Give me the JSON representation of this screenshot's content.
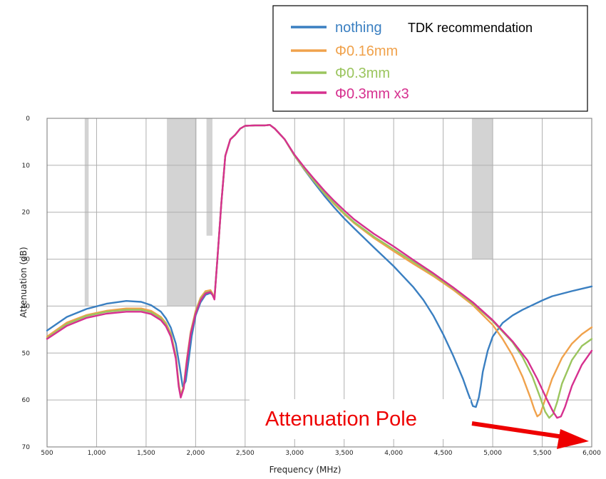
{
  "chart_data": {
    "type": "line",
    "title": "",
    "xlabel": "Frequency (MHz)",
    "ylabel": "Attenuation (dB)",
    "xlim": [
      500,
      6000
    ],
    "ylim": [
      0,
      70
    ],
    "y_inverted": true,
    "grid": true,
    "legend_position": "top-right",
    "x_ticks": [
      "500",
      "1,000",
      "1,500",
      "2,000",
      "2,500",
      "3,000",
      "3,500",
      "4,000",
      "4,500",
      "5,000",
      "5,500",
      "6,000"
    ],
    "x_tick_values": [
      500,
      1000,
      1500,
      2000,
      2500,
      3000,
      3500,
      4000,
      4500,
      5000,
      5500,
      6000
    ],
    "y_ticks": [
      "0",
      "10",
      "20",
      "30",
      "40",
      "50",
      "60",
      "70"
    ],
    "y_tick_values": [
      0,
      10,
      20,
      30,
      40,
      50,
      60,
      70
    ],
    "legend_note": "TDK recommendation",
    "annotation": "Attenuation Pole",
    "mask_regions": [
      {
        "x": [
          880,
          920
        ],
        "y": [
          0,
          40
        ]
      },
      {
        "x": [
          1710,
          2010
        ],
        "y": [
          0,
          40
        ]
      },
      {
        "x": [
          2110,
          2170
        ],
        "y": [
          0,
          25
        ]
      },
      {
        "x": [
          4790,
          5000
        ],
        "y": [
          0,
          30
        ]
      }
    ],
    "mask_color": "#d3d3d3",
    "series": [
      {
        "name": "nothing",
        "color": "#3a7fc1",
        "x": [
          500,
          700,
          900,
          1100,
          1300,
          1450,
          1550,
          1650,
          1700,
          1750,
          1800,
          1840,
          1870,
          1900,
          1930,
          1960,
          2000,
          2050,
          2100,
          2150,
          2170,
          2190,
          2220,
          2260,
          2300,
          2350,
          2400,
          2450,
          2500,
          2600,
          2700,
          2750,
          2800,
          2900,
          3000,
          3100,
          3200,
          3300,
          3400,
          3500,
          3600,
          3800,
          4000,
          4200,
          4300,
          4400,
          4500,
          4600,
          4700,
          4750,
          4800,
          4830,
          4860,
          4880,
          4900,
          4950,
          5000,
          5100,
          5200,
          5300,
          5400,
          5500,
          5600,
          5800,
          6000
        ],
        "y": [
          45.2,
          42.3,
          40.6,
          39.5,
          38.9,
          39.1,
          39.8,
          41.2,
          42.6,
          44.6,
          48.0,
          53.0,
          57.2,
          56.0,
          51.5,
          46.5,
          42.0,
          39.2,
          37.6,
          37.2,
          37.6,
          38.2,
          30,
          18,
          8,
          4.5,
          3.5,
          2.2,
          1.6,
          1.5,
          1.5,
          1.4,
          2.2,
          4.5,
          8.0,
          11.0,
          13.8,
          16.5,
          19.0,
          21.3,
          23.4,
          27.5,
          31.5,
          36.0,
          38.7,
          42.0,
          46.0,
          50.5,
          55.5,
          58.5,
          61.3,
          61.5,
          59.5,
          57.0,
          54.0,
          49.5,
          46.5,
          43.6,
          42.0,
          40.8,
          39.8,
          38.8,
          37.9,
          36.8,
          35.8
        ]
      },
      {
        "name": "Φ0.16mm",
        "color": "#f0a24c",
        "x": [
          500,
          700,
          900,
          1100,
          1300,
          1450,
          1550,
          1650,
          1700,
          1750,
          1800,
          1830,
          1850,
          1880,
          1910,
          1950,
          2000,
          2050,
          2100,
          2150,
          2170,
          2190,
          2220,
          2260,
          2300,
          2350,
          2400,
          2450,
          2500,
          2600,
          2700,
          2750,
          2800,
          2900,
          3000,
          3100,
          3200,
          3300,
          3400,
          3500,
          3600,
          3800,
          4000,
          4200,
          4400,
          4600,
          4800,
          5000,
          5100,
          5200,
          5300,
          5380,
          5420,
          5450,
          5480,
          5520,
          5600,
          5700,
          5800,
          5900,
          6000
        ],
        "y": [
          46.5,
          43.5,
          41.9,
          41.0,
          40.5,
          40.5,
          41.0,
          42.3,
          43.6,
          45.8,
          50.5,
          56.5,
          59.0,
          57.0,
          51.5,
          45.5,
          41.0,
          38.2,
          36.8,
          36.6,
          37.3,
          38.3,
          30,
          18,
          8,
          4.5,
          3.5,
          2.2,
          1.6,
          1.5,
          1.5,
          1.4,
          2.2,
          4.5,
          8.0,
          10.9,
          13.5,
          16.0,
          18.3,
          20.4,
          22.3,
          25.5,
          28.3,
          31.0,
          33.6,
          36.5,
          39.8,
          44.0,
          47.0,
          50.5,
          55.0,
          59.5,
          62.0,
          63.5,
          63.0,
          60.5,
          55.5,
          51.0,
          48.0,
          46.0,
          44.5
        ]
      },
      {
        "name": "Φ0.3mm",
        "color": "#9bc55e",
        "x": [
          500,
          700,
          900,
          1100,
          1300,
          1450,
          1550,
          1650,
          1700,
          1750,
          1800,
          1830,
          1850,
          1880,
          1910,
          1950,
          2000,
          2050,
          2100,
          2150,
          2170,
          2190,
          2220,
          2260,
          2300,
          2350,
          2400,
          2450,
          2500,
          2600,
          2700,
          2750,
          2800,
          2900,
          3000,
          3100,
          3200,
          3300,
          3400,
          3500,
          3600,
          3800,
          4000,
          4200,
          4400,
          4600,
          4800,
          5000,
          5200,
          5300,
          5400,
          5480,
          5530,
          5570,
          5610,
          5650,
          5700,
          5800,
          5900,
          6000
        ],
        "y": [
          46.8,
          43.8,
          42.1,
          41.2,
          40.8,
          40.8,
          41.3,
          42.6,
          43.9,
          46.1,
          50.8,
          56.8,
          59.2,
          57.2,
          51.8,
          45.8,
          41.3,
          38.5,
          37.1,
          36.9,
          37.5,
          38.5,
          30,
          18,
          8,
          4.5,
          3.5,
          2.2,
          1.6,
          1.5,
          1.5,
          1.4,
          2.2,
          4.5,
          8.0,
          10.8,
          13.4,
          15.9,
          18.1,
          20.2,
          22.1,
          25.2,
          27.9,
          30.6,
          33.3,
          36.2,
          39.5,
          43.2,
          47.7,
          50.8,
          55.0,
          59.5,
          62.5,
          63.8,
          63.0,
          60.5,
          56.5,
          51.5,
          48.5,
          47.0
        ]
      },
      {
        "name": "Φ0.3mm x3",
        "color": "#d6308f",
        "x": [
          500,
          700,
          900,
          1100,
          1300,
          1450,
          1550,
          1650,
          1700,
          1750,
          1800,
          1830,
          1850,
          1880,
          1910,
          1950,
          2000,
          2050,
          2100,
          2150,
          2170,
          2190,
          2220,
          2260,
          2300,
          2350,
          2400,
          2450,
          2500,
          2600,
          2700,
          2750,
          2800,
          2900,
          3000,
          3100,
          3200,
          3300,
          3400,
          3500,
          3600,
          3800,
          4000,
          4200,
          4400,
          4600,
          4800,
          5000,
          5200,
          5350,
          5450,
          5550,
          5610,
          5650,
          5690,
          5730,
          5800,
          5900,
          6000
        ],
        "y": [
          47.0,
          44.2,
          42.5,
          41.6,
          41.2,
          41.2,
          41.7,
          43.0,
          44.3,
          46.5,
          51.2,
          57.2,
          59.5,
          57.5,
          52.0,
          46.0,
          41.6,
          38.8,
          37.3,
          37.0,
          37.6,
          38.6,
          30,
          18,
          8,
          4.5,
          3.5,
          2.2,
          1.6,
          1.5,
          1.5,
          1.4,
          2.2,
          4.5,
          7.8,
          10.5,
          13.0,
          15.4,
          17.6,
          19.6,
          21.5,
          24.6,
          27.3,
          30.2,
          33.0,
          36.0,
          39.2,
          43.0,
          47.5,
          51.5,
          55.5,
          60.0,
          62.5,
          63.8,
          63.5,
          61.5,
          57.0,
          52.5,
          49.5
        ]
      }
    ]
  }
}
